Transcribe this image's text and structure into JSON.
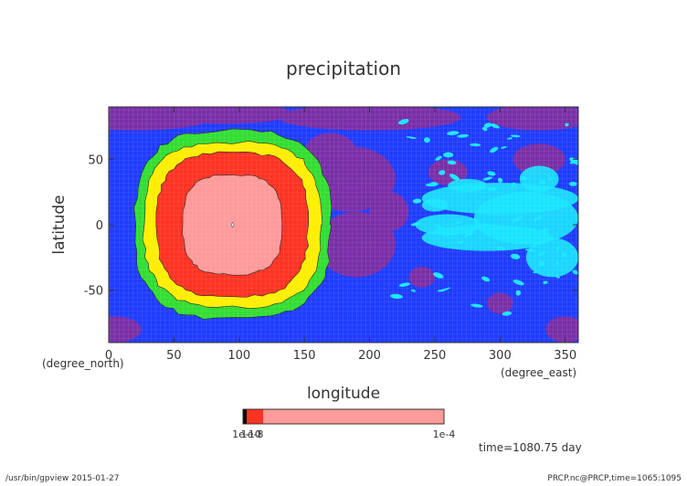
{
  "chart_data": {
    "type": "heatmap",
    "title": "precipitation",
    "xlabel": "longitude",
    "ylabel": "latitude",
    "x_unit": "(degree_east)",
    "y_unit": "(degree_north)",
    "xlim": [
      0,
      360
    ],
    "ylim": [
      -90,
      90
    ],
    "x_ticks": [
      0,
      50,
      100,
      150,
      200,
      250,
      300,
      350
    ],
    "y_ticks": [
      -50,
      0,
      50
    ],
    "colors": {
      "background_level": "#1f3cff",
      "low_purple": "#7a2fa8",
      "cyan": "#19e6ff",
      "green": "#33dd33",
      "yellow": "#ffee00",
      "red": "#ff3322",
      "pink": "#ff9a9a"
    },
    "features": [
      {
        "name": "precipitation maximum ring",
        "center_lon": 95,
        "center_lat": 0,
        "levels": [
          {
            "color": "green",
            "half_width_lon": 75,
            "half_width_lat": 72
          },
          {
            "color": "yellow",
            "half_width_lon": 68,
            "half_width_lat": 63
          },
          {
            "color": "red",
            "half_width_lon": 58,
            "half_width_lat": 55
          },
          {
            "color": "pink",
            "half_width_lon": 38,
            "half_width_lat": 38
          }
        ]
      },
      {
        "name": "cyan streaks",
        "lon_range": [
          230,
          360
        ],
        "lat_range": [
          -60,
          80
        ]
      },
      {
        "name": "purple patches",
        "lon_range": [
          0,
          360
        ],
        "lat_range": [
          -90,
          90
        ]
      }
    ],
    "colorbar": {
      "min_label": "1e-10",
      "min_label_overlap": "1e-8",
      "max_label": "1e-4",
      "segments": [
        "#000000",
        "#ff3322",
        "#ff9a9a"
      ]
    },
    "time_label": "time=1080.75 day"
  },
  "footer": {
    "left": "/usr/bin/gpview  2015-01-27",
    "right": "PRCP.nc@PRCP,time=1065:1095"
  }
}
